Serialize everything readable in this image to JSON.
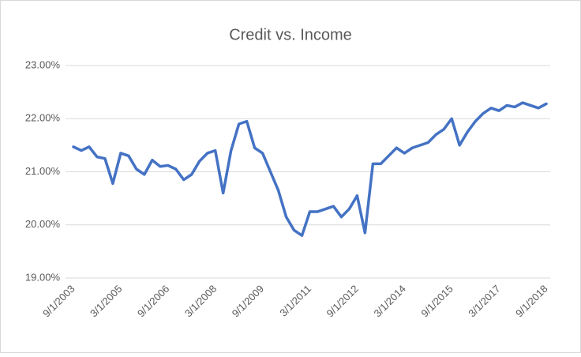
{
  "chart_data": {
    "type": "line",
    "title": "Credit vs. Income",
    "categories": [
      "9/1/2003",
      null,
      null,
      null,
      null,
      null,
      "3/1/2005",
      null,
      null,
      null,
      null,
      null,
      "9/1/2006",
      null,
      null,
      null,
      null,
      null,
      "3/1/2008",
      null,
      null,
      null,
      null,
      null,
      "9/1/2009",
      null,
      null,
      null,
      null,
      null,
      "3/1/2011",
      null,
      null,
      null,
      null,
      null,
      "9/1/2012",
      null,
      null,
      null,
      null,
      null,
      "3/1/2014",
      null,
      null,
      null,
      null,
      null,
      "9/1/2015",
      null,
      null,
      null,
      null,
      null,
      "3/1/2017",
      null,
      null,
      null,
      null,
      null,
      "9/1/2018"
    ],
    "series": [
      {
        "name": "Credit vs. Income",
        "color": "#4472c4",
        "values": [
          21.47,
          21.4,
          21.47,
          21.28,
          21.25,
          20.78,
          21.35,
          21.3,
          21.05,
          20.95,
          21.22,
          21.1,
          21.12,
          21.05,
          20.85,
          20.95,
          21.2,
          21.35,
          21.4,
          20.6,
          21.4,
          21.9,
          21.95,
          21.45,
          21.35,
          21.0,
          20.65,
          20.15,
          19.9,
          19.8,
          20.25,
          20.25,
          20.3,
          20.35,
          20.15,
          20.3,
          20.55,
          19.85,
          21.15,
          21.15,
          21.3,
          21.45,
          21.35,
          21.45,
          21.5,
          21.55,
          21.7,
          21.8,
          22.0,
          21.5,
          21.75,
          21.95,
          22.1,
          22.2,
          22.15,
          22.25,
          22.22,
          22.3,
          22.25,
          22.2,
          22.28
        ]
      }
    ],
    "ylim": [
      19,
      23
    ],
    "yticks": [
      {
        "value": 19,
        "label": "19.00%"
      },
      {
        "value": 20,
        "label": "20.00%"
      },
      {
        "value": 21,
        "label": "21.00%"
      },
      {
        "value": 22,
        "label": "22.00%"
      },
      {
        "value": 23,
        "label": "23.00%"
      }
    ],
    "grid": true
  }
}
